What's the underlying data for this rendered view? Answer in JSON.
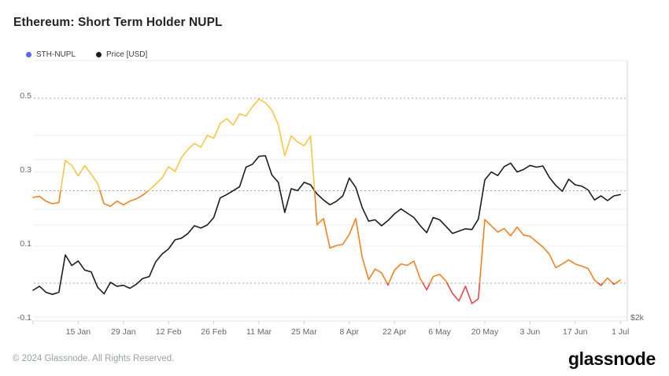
{
  "header": {
    "title": "Ethereum: Short Term Holder NUPL"
  },
  "footer": {
    "copyright": "© 2024 Glassnode. All Rights Reserved.",
    "brand": "glassnode"
  },
  "chart_data": {
    "type": "line",
    "title": "Ethereum: Short Term Holder NUPL",
    "legend_position": "top-left",
    "grid": "on",
    "legend_dot_colors": [
      "#5B68F2",
      "#1D1D1F"
    ],
    "price_color": "#1D1D1F",
    "zone_colors": [
      {
        "min": 0.25,
        "color": "#F6C744"
      },
      {
        "min": 0.0,
        "color": "#F5821F"
      },
      {
        "min": -999,
        "color": "#E5484D"
      }
    ],
    "x_axis": {
      "tick_labels": [
        "15 Jan",
        "29 Jan",
        "12 Feb",
        "26 Feb",
        "11 Mar",
        "25 Mar",
        "8 Apr",
        "22 Apr",
        "6 May",
        "20 May",
        "3 Jun",
        "17 Jun",
        "1 Jul"
      ],
      "start_date": "1 Jan",
      "end_date": "1 Jul"
    },
    "y_axis_left": {
      "label_values": [
        0.5,
        0.3,
        0.1,
        -0.1
      ],
      "gridlines": [
        0.4,
        0.3,
        0.2,
        0.1
      ],
      "threshold_lines": [
        0.5,
        0.25,
        0.0
      ],
      "range": [
        -0.12,
        0.55
      ]
    },
    "y_axis_right": {
      "tick_labels": [
        "$2k"
      ],
      "scale": "log",
      "gridline_prices": [
        4000,
        3000,
        2000
      ]
    },
    "dates": [
      "1 Jan",
      "3 Jan",
      "5 Jan",
      "7 Jan",
      "9 Jan",
      "11 Jan",
      "13 Jan",
      "15 Jan",
      "17 Jan",
      "19 Jan",
      "21 Jan",
      "23 Jan",
      "25 Jan",
      "27 Jan",
      "29 Jan",
      "31 Jan",
      "2 Feb",
      "4 Feb",
      "6 Feb",
      "8 Feb",
      "10 Feb",
      "12 Feb",
      "14 Feb",
      "16 Feb",
      "18 Feb",
      "20 Feb",
      "22 Feb",
      "24 Feb",
      "26 Feb",
      "28 Feb",
      "1 Mar",
      "3 Mar",
      "5 Mar",
      "7 Mar",
      "9 Mar",
      "11 Mar",
      "13 Mar",
      "15 Mar",
      "17 Mar",
      "19 Mar",
      "21 Mar",
      "23 Mar",
      "25 Mar",
      "27 Mar",
      "29 Mar",
      "31 Mar",
      "2 Apr",
      "4 Apr",
      "6 Apr",
      "8 Apr",
      "10 Apr",
      "12 Apr",
      "14 Apr",
      "16 Apr",
      "18 Apr",
      "20 Apr",
      "22 Apr",
      "24 Apr",
      "26 Apr",
      "28 Apr",
      "30 Apr",
      "2 May",
      "4 May",
      "6 May",
      "8 May",
      "10 May",
      "12 May",
      "14 May",
      "16 May",
      "18 May",
      "20 May",
      "22 May",
      "24 May",
      "26 May",
      "28 May",
      "30 May",
      "1 Jun",
      "3 Jun",
      "5 Jun",
      "7 Jun",
      "9 Jun",
      "11 Jun",
      "13 Jun",
      "15 Jun",
      "17 Jun",
      "19 Jun",
      "21 Jun",
      "23 Jun",
      "25 Jun",
      "27 Jun",
      "29 Jun",
      "1 Jul"
    ],
    "series": [
      {
        "name": "STH-NUPL",
        "axis": "left",
        "values": [
          0.232,
          0.235,
          0.222,
          0.215,
          0.218,
          0.332,
          0.318,
          0.29,
          0.318,
          0.295,
          0.27,
          0.215,
          0.208,
          0.222,
          0.212,
          0.222,
          0.228,
          0.238,
          0.252,
          0.268,
          0.285,
          0.315,
          0.302,
          0.34,
          0.362,
          0.378,
          0.368,
          0.4,
          0.392,
          0.432,
          0.445,
          0.428,
          0.458,
          0.452,
          0.478,
          0.498,
          0.488,
          0.468,
          0.428,
          0.345,
          0.398,
          0.382,
          0.372,
          0.398,
          0.158,
          0.175,
          0.095,
          0.102,
          0.105,
          0.132,
          0.175,
          0.07,
          0.01,
          0.038,
          0.028,
          -0.005,
          0.035,
          0.052,
          0.048,
          0.06,
          0.012,
          -0.018,
          0.018,
          0.024,
          0.005,
          -0.028,
          -0.048,
          -0.008,
          -0.055,
          -0.042,
          0.172,
          0.155,
          0.138,
          0.148,
          0.128,
          0.152,
          0.13,
          0.127,
          0.112,
          0.098,
          0.078,
          0.042,
          0.052,
          0.063,
          0.052,
          0.046,
          0.04,
          0.008,
          -0.006,
          0.014,
          -0.003,
          0.008
        ]
      },
      {
        "name": "Price [USD]",
        "axis": "right",
        "values": [
          2250,
          2290,
          2230,
          2210,
          2230,
          2630,
          2510,
          2560,
          2460,
          2440,
          2280,
          2215,
          2330,
          2290,
          2300,
          2270,
          2310,
          2370,
          2390,
          2550,
          2640,
          2700,
          2810,
          2830,
          2890,
          2990,
          2960,
          3000,
          3100,
          3380,
          3430,
          3490,
          3550,
          3870,
          3920,
          4060,
          4070,
          3740,
          3620,
          3170,
          3520,
          3490,
          3620,
          3580,
          3440,
          3350,
          3280,
          3330,
          3410,
          3690,
          3540,
          3240,
          3050,
          3070,
          2990,
          3060,
          3150,
          3220,
          3160,
          3100,
          2990,
          2900,
          3100,
          3070,
          2980,
          2890,
          2920,
          2950,
          2940,
          3080,
          3660,
          3790,
          3730,
          3880,
          3940,
          3790,
          3830,
          3900,
          3870,
          3890,
          3700,
          3570,
          3480,
          3670,
          3580,
          3560,
          3500,
          3350,
          3410,
          3340,
          3410,
          3430
        ]
      }
    ]
  }
}
